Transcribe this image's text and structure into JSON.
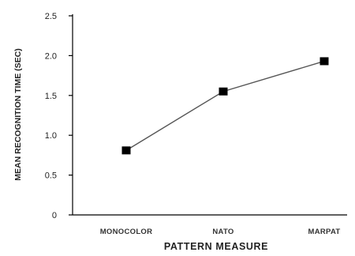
{
  "chart_data": {
    "type": "line",
    "categories": [
      "MONOCOLOR",
      "NATO",
      "MARPAT"
    ],
    "series": [
      {
        "values": [
          0.81,
          1.55,
          1.93
        ]
      }
    ],
    "xlabel": "PATTERN MEASURE",
    "ylabel": "MEAN RECOGNITION TIME (SEC)",
    "ylim": [
      0,
      2.5
    ],
    "yticks": [
      "0",
      "0.5",
      "1.0",
      "1.5",
      "2.0",
      "2.5"
    ],
    "grid": false,
    "legend": "none",
    "line_color": "#555555",
    "marker": "square",
    "marker_color": "#000000"
  }
}
